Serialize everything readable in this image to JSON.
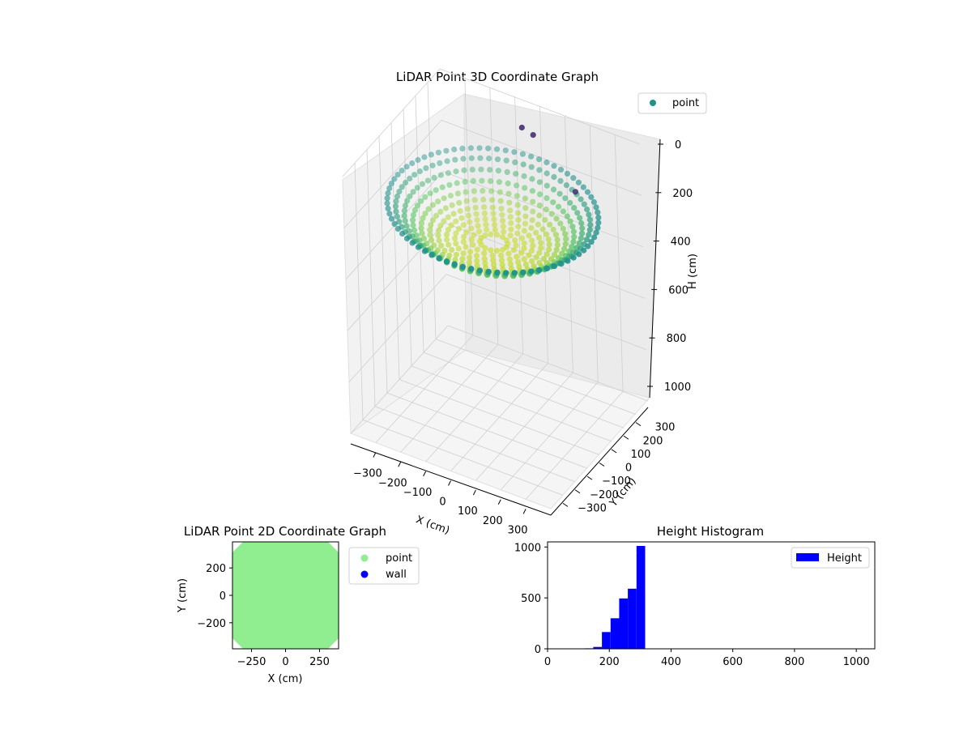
{
  "colors": {
    "point3d": "#21918c",
    "point2d": "#90ee90",
    "wall": "#0000ff",
    "hist": "#0000ff",
    "pane": "#f2f2f2",
    "grid": "#cfcfcf",
    "viridis": [
      "#440154",
      "#3b528b",
      "#21918c",
      "#5ec962",
      "#fde725"
    ]
  },
  "chart_data": [
    {
      "type": "scatter3d",
      "title": "LiDAR Point 3D Coordinate Graph",
      "xlabel": "X (cm)",
      "ylabel": "Y (cm)",
      "zlabel": "H (cm)",
      "xlim": [
        -400,
        400
      ],
      "ylim": [
        -400,
        400
      ],
      "zlim": [
        0,
        1000
      ],
      "zinverted": true,
      "xticks": [
        "−300",
        "−200",
        "−100",
        "0",
        "100",
        "200",
        "300"
      ],
      "yticks": [
        "−300",
        "−200",
        "−100",
        "0",
        "100",
        "200",
        "300"
      ],
      "zticks": [
        "0",
        "200",
        "400",
        "600",
        "800",
        "1000"
      ],
      "legend": {
        "labels": [
          "point"
        ],
        "position": "upper-right"
      },
      "point_cloud": {
        "shape": "dome of concentric rings",
        "rings_radius_cm": [
          380,
          350,
          320,
          290,
          260,
          230,
          200,
          170,
          140,
          110,
          80,
          50
        ],
        "rings_height_cm": [
          195,
          215,
          240,
          265,
          285,
          300,
          310,
          315,
          318,
          320,
          320,
          320
        ],
        "outlier_points": [
          {
            "x": -40,
            "y": 330,
            "h": 60
          },
          {
            "x": 10,
            "y": 320,
            "h": 65
          },
          {
            "x": 250,
            "y": 170,
            "h": 120
          }
        ]
      },
      "grid": true
    },
    {
      "type": "scatter",
      "title": "LiDAR Point 2D Coordinate Graph",
      "xlabel": "X (cm)",
      "ylabel": "Y (cm)",
      "xlim": [
        -390,
        390
      ],
      "ylim": [
        -390,
        390
      ],
      "xticks": [
        "−250",
        "0",
        "250"
      ],
      "yticks": [
        "200",
        "0",
        "−200"
      ],
      "series": [
        {
          "name": "point",
          "region": "filled octagon spanning ±390 cm"
        },
        {
          "name": "wall",
          "points": []
        }
      ],
      "legend": {
        "labels": [
          "point",
          "wall"
        ],
        "position": "outside-right"
      }
    },
    {
      "type": "bar",
      "title": "Height Histogram",
      "xlabel": "",
      "ylabel": "",
      "xlim": [
        0,
        1060
      ],
      "ylim": [
        0,
        1050
      ],
      "xticks": [
        "0",
        "200",
        "400",
        "600",
        "800",
        "1000"
      ],
      "yticks": [
        "0",
        "500",
        "1000"
      ],
      "bins": [
        {
          "x0": 120,
          "x1": 148,
          "count": 5
        },
        {
          "x0": 148,
          "x1": 176,
          "count": 18
        },
        {
          "x0": 176,
          "x1": 204,
          "count": 165
        },
        {
          "x0": 204,
          "x1": 232,
          "count": 300
        },
        {
          "x0": 232,
          "x1": 260,
          "count": 495
        },
        {
          "x0": 260,
          "x1": 288,
          "count": 590
        },
        {
          "x0": 288,
          "x1": 316,
          "count": 1010
        }
      ],
      "legend": {
        "labels": [
          "Height"
        ],
        "position": "upper-right"
      }
    }
  ]
}
